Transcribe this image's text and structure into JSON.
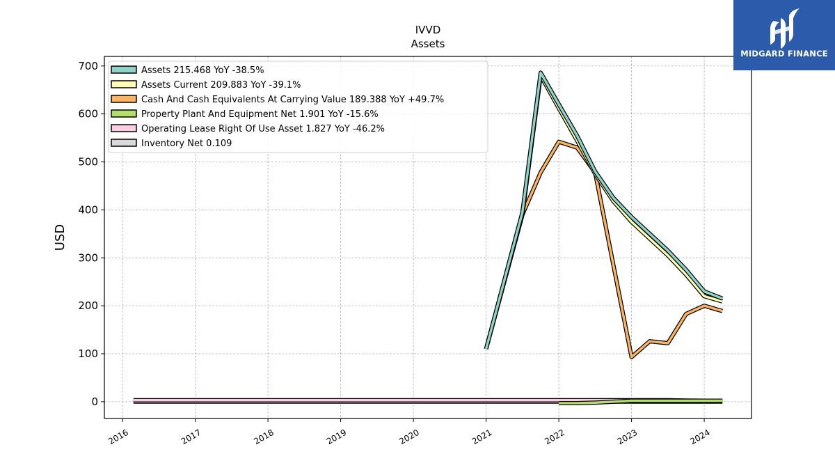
{
  "chart_data": {
    "type": "line",
    "title": "IVVD",
    "subtitle": "Assets",
    "ylabel": "USD",
    "xlabel": "",
    "xlim": [
      2015.75,
      2024.65
    ],
    "ylim": [
      -35,
      720
    ],
    "x_ticks": [
      2016,
      2017,
      2018,
      2019,
      2020,
      2021,
      2022,
      2023,
      2024
    ],
    "x_tick_labels": [
      "2016",
      "2017",
      "2018",
      "2019",
      "2020",
      "2021",
      "2022",
      "2023",
      "2024"
    ],
    "y_ticks": [
      0,
      100,
      200,
      300,
      400,
      500,
      600,
      700
    ],
    "y_tick_labels": [
      "0",
      "100",
      "200",
      "300",
      "400",
      "500",
      "600",
      "700"
    ],
    "grid": true,
    "legend_position": "top-left",
    "series": [
      {
        "name": "Assets  215.468 YoY -38.5%",
        "color": "#8dd3c7",
        "x": [
          2021.0,
          2021.5,
          2021.75,
          2022.0,
          2022.25,
          2022.5,
          2022.75,
          2023.0,
          2023.25,
          2023.5,
          2023.75,
          2024.0,
          2024.25
        ],
        "y": [
          110,
          395,
          686,
          620,
          555,
          480,
          425,
          385,
          350,
          315,
          275,
          230,
          215
        ]
      },
      {
        "name": "Assets Current  209.883 YoY -39.1%",
        "color": "#ffffb3",
        "x": [
          2021.0,
          2021.5,
          2021.75,
          2022.0,
          2022.25,
          2022.5,
          2022.75,
          2023.0,
          2023.25,
          2023.5,
          2023.75,
          2024.0,
          2024.25
        ],
        "y": [
          110,
          390,
          680,
          612,
          545,
          475,
          418,
          375,
          340,
          305,
          265,
          220,
          209
        ]
      },
      {
        "name": "Cash And Cash Equivalents At Carrying Value  189.388 YoY +49.7%",
        "color": "#fdb462",
        "x": [
          2021.0,
          2021.5,
          2021.75,
          2022.0,
          2022.25,
          2022.5,
          2022.75,
          2023.0,
          2023.25,
          2023.5,
          2023.75,
          2024.0,
          2024.25
        ],
        "y": [
          110,
          390,
          478,
          542,
          530,
          478,
          285,
          93,
          126,
          122,
          183,
          200,
          189
        ]
      },
      {
        "name": "Property Plant And Equipment Net  1.901 YoY -15.6%",
        "color": "#b3de69",
        "x": [
          2022.0,
          2022.25,
          2022.5,
          2022.75,
          2023.0,
          2023.25,
          2023.5,
          2023.75,
          2024.0,
          2024.25
        ],
        "y": [
          -3,
          -3,
          -2,
          0,
          2,
          2,
          2,
          2,
          2,
          2
        ]
      },
      {
        "name": "Operating Lease Right Of Use Asset  1.827 YoY -46.2%",
        "color": "#fccde5",
        "x": [
          2016.15,
          2022.5,
          2022.75,
          2023.0,
          2023.25,
          2023.5,
          2023.75,
          2024.0,
          2024.25
        ],
        "y": [
          3,
          3,
          3,
          3,
          3,
          3,
          2.5,
          2,
          1.8
        ]
      },
      {
        "name": "Inventory Net  0.109",
        "color": "#d9d9d9",
        "x": [
          2016.15,
          2024.25
        ],
        "y": [
          0.1,
          0.1
        ]
      }
    ]
  },
  "logo": {
    "text": "MIDGARD FINANCE",
    "color": "#2c5bab"
  }
}
